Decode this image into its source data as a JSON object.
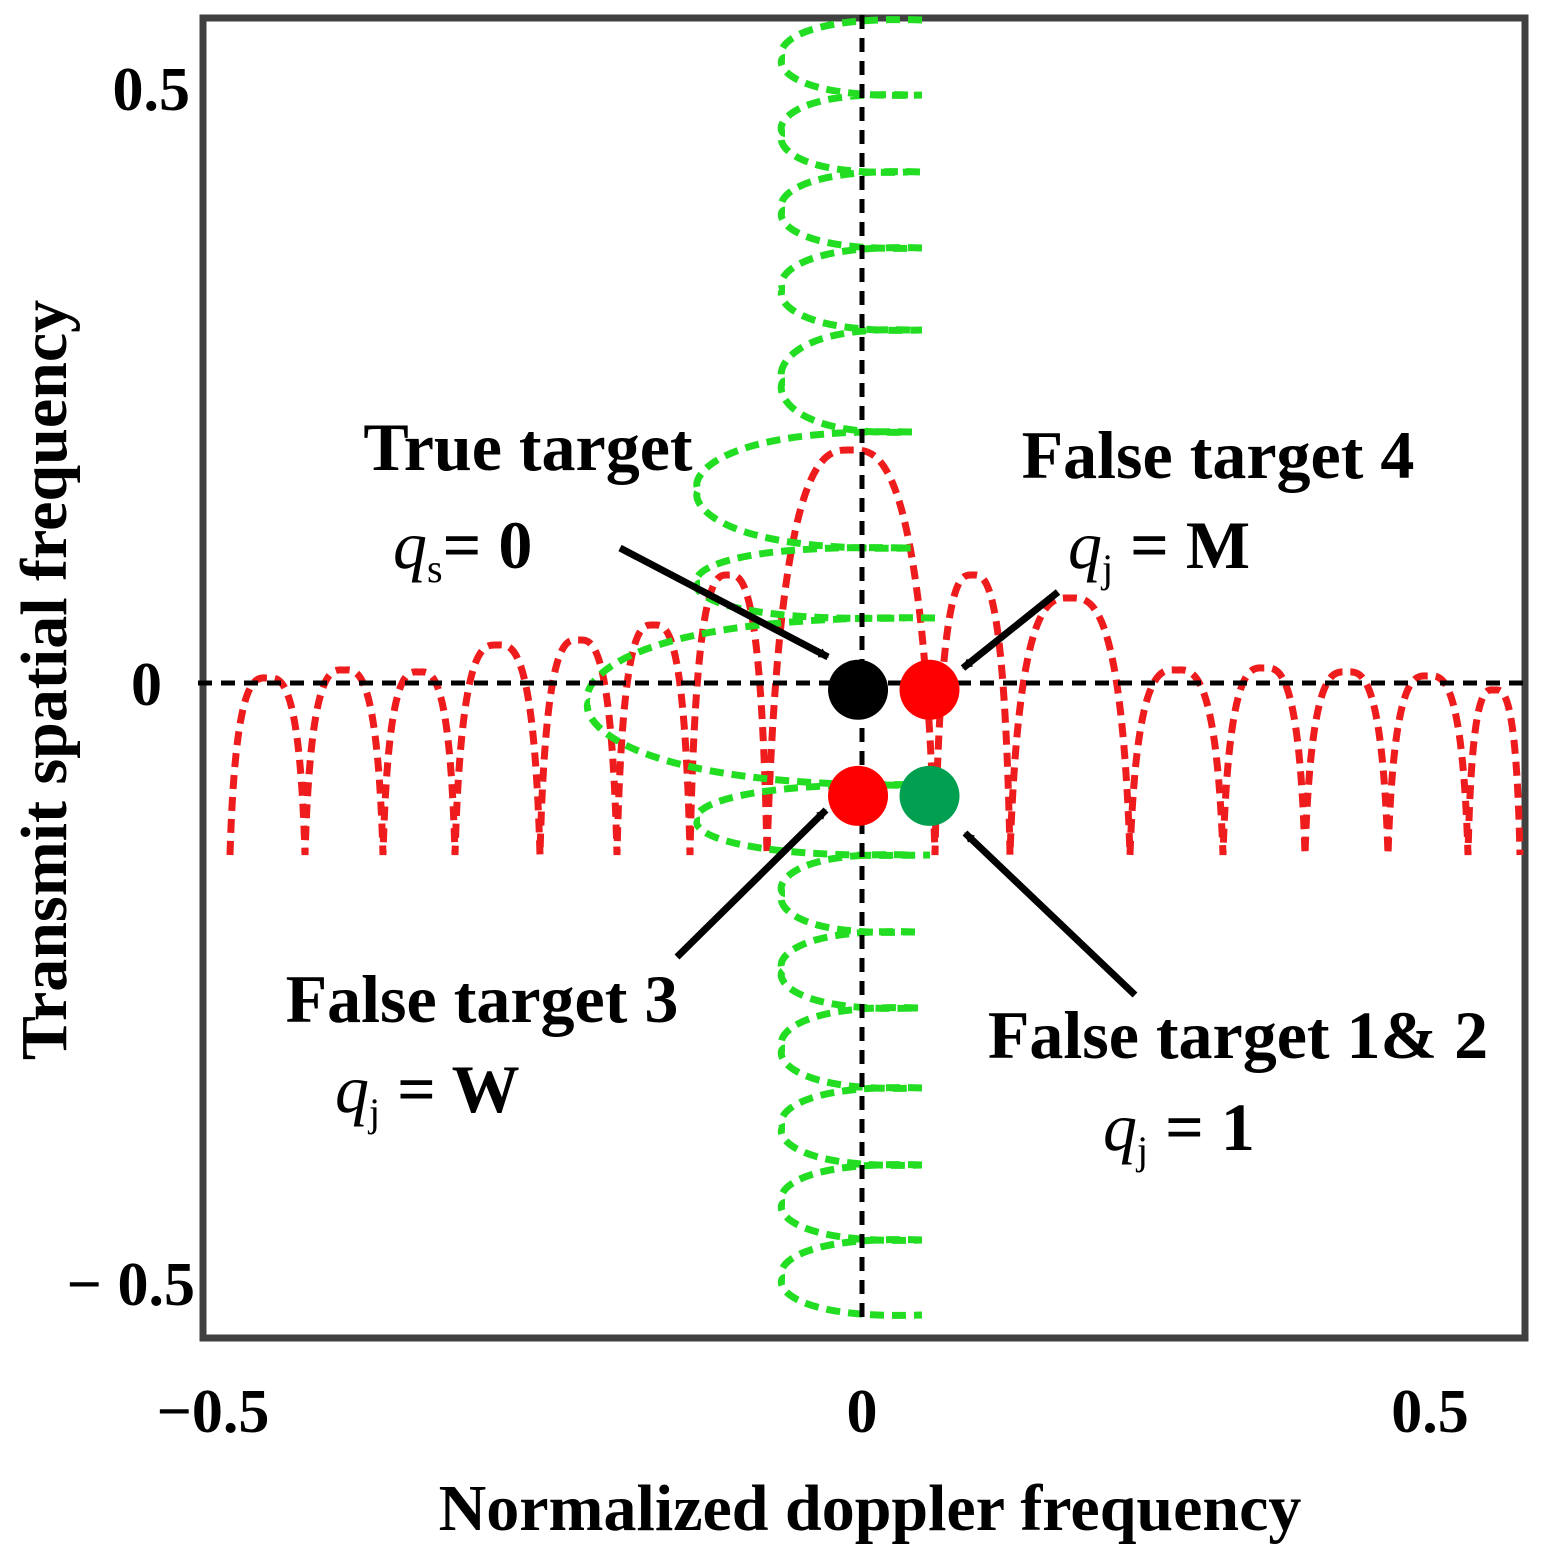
{
  "figure": {
    "xlabel": "Normalized doppler frequency",
    "ylabel": "Transmit spatial frequency",
    "x_ticks": [
      "−0.5",
      "0",
      "0.5"
    ],
    "y_ticks": [
      "0.5",
      "0",
      "− 0.5"
    ]
  },
  "colors": {
    "frame": "#404040",
    "doppler_pattern": "#ee1c1c",
    "spatial_pattern": "#22dd22",
    "true_target": "#000000",
    "false_target_red": "#ff0000",
    "false_target_green": "#00a050",
    "cut_lines": "#000000"
  },
  "annotations": {
    "true_target": {
      "title": "True target",
      "q": "q",
      "sub": "s",
      "eq": "= 0"
    },
    "false4": {
      "title": "False target 4",
      "q": "q",
      "sub": "j",
      "eq": " = M"
    },
    "false3": {
      "title": "False target 3",
      "q": "q",
      "sub": "j",
      "eq": " = W"
    },
    "false12": {
      "title": "False target 1& 2",
      "q": "q",
      "sub": "j",
      "eq": " = 1"
    }
  },
  "markers": [
    {
      "name": "true-target-marker",
      "label": "True target",
      "x": 0.0,
      "y": 0.0,
      "color": "#000000"
    },
    {
      "name": "false-target-4-marker",
      "label": "False target 4",
      "x": 0.06,
      "y": 0.0,
      "color": "#ff0000"
    },
    {
      "name": "false-target-3-marker",
      "label": "False target 3",
      "x": 0.0,
      "y": -0.09,
      "color": "#ff0000"
    },
    {
      "name": "false-target-1-2-marker",
      "label": "False target 1& 2",
      "x": 0.06,
      "y": -0.09,
      "color": "#00a050"
    }
  ],
  "axes": {
    "xlim": [
      -0.55,
      0.56
    ],
    "ylim": [
      -0.55,
      0.57
    ]
  }
}
